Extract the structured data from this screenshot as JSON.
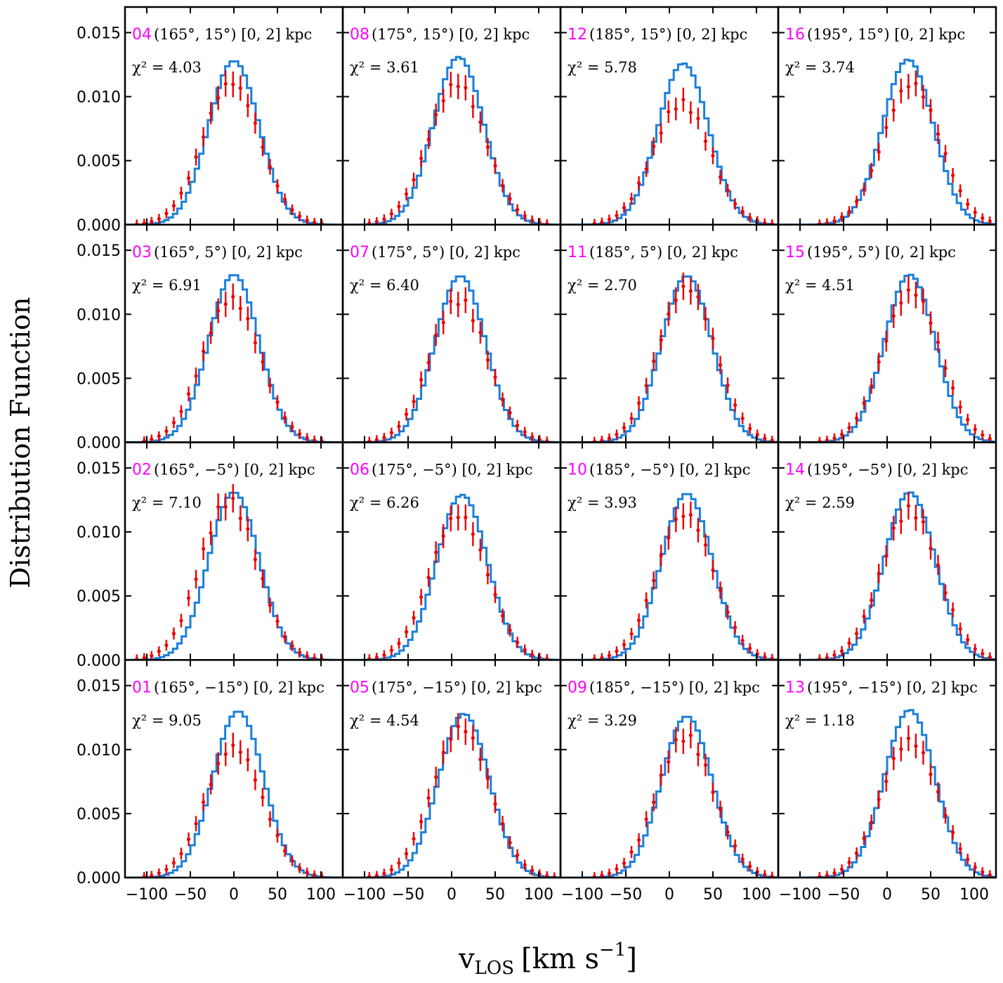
{
  "figure": {
    "ylabel": "Distribution Function",
    "xlabel_main": "v",
    "xlabel_sub": "LOS",
    "xlabel_units": "[km s",
    "xlabel_exp": "−1",
    "xlabel_close": "]",
    "id_color": "#ff00ff",
    "model_color": "#1a7fdc",
    "data_color": "#ee0000"
  },
  "chart_data": {
    "type": "line",
    "description_series": [
      "model histogram",
      "observed data with error bars"
    ],
    "xlim": [
      -125,
      125
    ],
    "ylim": [
      0,
      0.017
    ],
    "xticks": [
      -100,
      -50,
      0,
      50,
      100
    ],
    "xtick_labels": [
      "−100",
      "−50",
      "0",
      "50",
      "100"
    ],
    "yticks": [
      0.0,
      0.005,
      0.01,
      0.015
    ],
    "ytick_labels": [
      "0.000",
      "0.005",
      "0.010",
      "0.015"
    ],
    "grid": false,
    "rows": [
      [
        {
          "id": "04",
          "coord": "(165°, 15°) [0, 2] kpc",
          "chi2": "χ² = 4.03",
          "peak_center": 0,
          "model_peak": 0.0128,
          "data_peak": 0.0111,
          "data_shift": -3
        },
        {
          "id": "08",
          "coord": "(175°, 15°) [0, 2] kpc",
          "chi2": "χ² = 3.61",
          "peak_center": 8,
          "model_peak": 0.0131,
          "data_peak": 0.011,
          "data_shift": -2
        },
        {
          "id": "12",
          "coord": "(185°, 15°) [0, 2] kpc",
          "chi2": "χ² = 5.78",
          "peak_center": 16,
          "model_peak": 0.0126,
          "data_peak": 0.0095,
          "data_shift": -2
        },
        {
          "id": "16",
          "coord": "(195°, 15°) [0, 2] kpc",
          "chi2": "χ² = 3.74",
          "peak_center": 24,
          "model_peak": 0.0129,
          "data_peak": 0.011,
          "data_shift": 4
        }
      ],
      [
        {
          "id": "03",
          "coord": "(165°, 5°) [0, 2] kpc",
          "chi2": "χ² = 6.91",
          "peak_center": 0,
          "model_peak": 0.0131,
          "data_peak": 0.0112,
          "data_shift": -3
        },
        {
          "id": "07",
          "coord": "(175°, 5°) [0, 2] kpc",
          "chi2": "χ² = 6.40",
          "peak_center": 10,
          "model_peak": 0.013,
          "data_peak": 0.0111,
          "data_shift": -2
        },
        {
          "id": "11",
          "coord": "(185°, 5°) [0, 2] kpc",
          "chi2": "χ² = 2.70",
          "peak_center": 20,
          "model_peak": 0.013,
          "data_peak": 0.0121,
          "data_shift": 0
        },
        {
          "id": "15",
          "coord": "(195°, 5°) [0, 2] kpc",
          "chi2": "χ² = 4.51",
          "peak_center": 26,
          "model_peak": 0.0131,
          "data_peak": 0.0118,
          "data_shift": 2
        }
      ],
      [
        {
          "id": "02",
          "coord": "(165°, −5°) [0, 2] kpc",
          "chi2": "χ² = 7.10",
          "peak_center": 0,
          "model_peak": 0.0131,
          "data_peak": 0.0124,
          "data_shift": -6
        },
        {
          "id": "06",
          "coord": "(175°, −5°) [0, 2] kpc",
          "chi2": "χ² = 6.26",
          "peak_center": 12,
          "model_peak": 0.0129,
          "data_peak": 0.0113,
          "data_shift": -4
        },
        {
          "id": "10",
          "coord": "(185°, −5°) [0, 2] kpc",
          "chi2": "χ² = 3.93",
          "peak_center": 20,
          "model_peak": 0.013,
          "data_peak": 0.0114,
          "data_shift": -2
        },
        {
          "id": "14",
          "coord": "(195°, −5°) [0, 2] kpc",
          "chi2": "χ² = 2.59",
          "peak_center": 26,
          "model_peak": 0.0131,
          "data_peak": 0.0117,
          "data_shift": 0
        }
      ],
      [
        {
          "id": "01",
          "coord": "(165°, −15°) [0, 2] kpc",
          "chi2": "χ² = 9.05",
          "peak_center": 5,
          "model_peak": 0.013,
          "data_peak": 0.0102,
          "data_shift": -5
        },
        {
          "id": "05",
          "coord": "(175°, −15°) [0, 2] kpc",
          "chi2": "χ² = 4.54",
          "peak_center": 14,
          "model_peak": 0.0128,
          "data_peak": 0.0117,
          "data_shift": -3
        },
        {
          "id": "09",
          "coord": "(185°, −15°) [0, 2] kpc",
          "chi2": "χ² = 3.29",
          "peak_center": 20,
          "model_peak": 0.0126,
          "data_peak": 0.011,
          "data_shift": -2
        },
        {
          "id": "13",
          "coord": "(195°, −15°) [0, 2] kpc",
          "chi2": "χ² = 1.18",
          "peak_center": 26,
          "model_peak": 0.0131,
          "data_peak": 0.0107,
          "data_shift": 0
        }
      ]
    ]
  }
}
